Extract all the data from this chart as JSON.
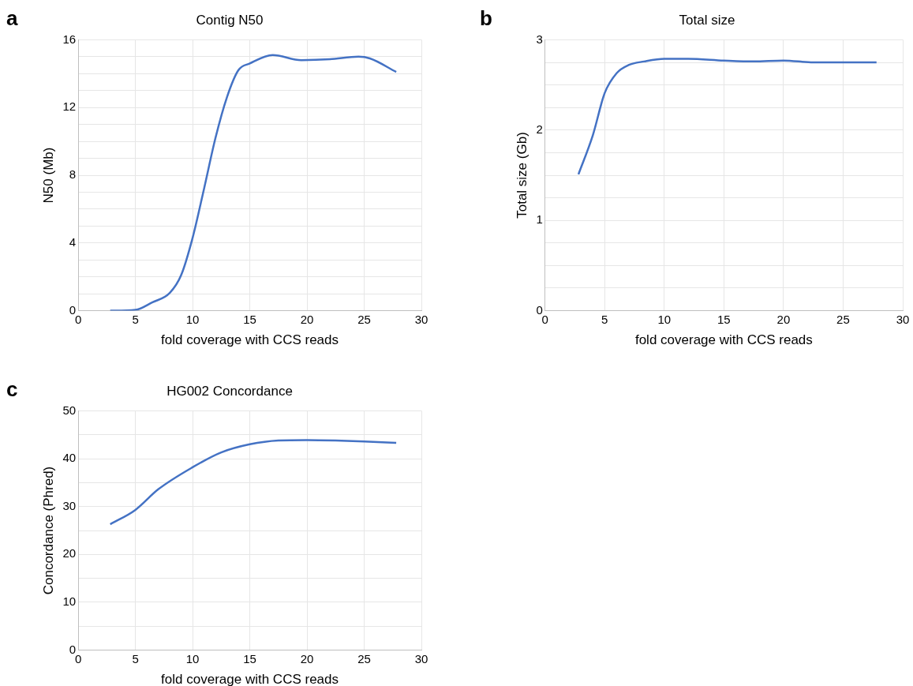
{
  "chart_data": [
    {
      "type": "line",
      "title": "Contig N50",
      "xlabel": "fold coverage with CCS reads",
      "ylabel": "N50 (Mb)",
      "annotations": [
        "a"
      ],
      "grid": true,
      "color": "#4472c4",
      "x": [
        2.8,
        5,
        6.5,
        8,
        9,
        10,
        11,
        12,
        13,
        14,
        15,
        17,
        19.5,
        22,
        24.5,
        25.5,
        27.8
      ],
      "values": [
        0,
        0.05,
        0.5,
        1.05,
        2.1,
        4.3,
        7.2,
        10.2,
        12.6,
        14.2,
        14.6,
        15.1,
        14.8,
        14.85,
        15,
        14.9,
        14.1
      ],
      "xlim": [
        0,
        30
      ],
      "xticks": [
        0,
        5,
        10,
        15,
        20,
        25,
        30
      ],
      "ylim": [
        0,
        16
      ],
      "yticks": [
        0,
        {
          "value": 1,
          "label": null
        },
        {
          "value": 2,
          "label": null
        },
        {
          "value": 3,
          "label": null
        },
        4,
        {
          "value": 5,
          "label": null
        },
        {
          "value": 6,
          "label": null
        },
        {
          "value": 7,
          "label": null
        },
        8,
        {
          "value": 9,
          "label": null
        },
        {
          "value": 10,
          "label": null
        },
        {
          "value": 11,
          "label": null
        },
        12,
        {
          "value": 13,
          "label": null
        },
        {
          "value": 14,
          "label": null
        },
        {
          "value": 15,
          "label": null
        },
        16
      ]
    },
    {
      "type": "line",
      "title": "Total size",
      "xlabel": "fold coverage with CCS reads",
      "ylabel": "Total size (Gb)",
      "annotations": [
        "b"
      ],
      "grid": true,
      "color": "#4472c4",
      "x": [
        2.8,
        4,
        5,
        6,
        7,
        8.3,
        10,
        12,
        15,
        17.5,
        20,
        22.5,
        25,
        27.8
      ],
      "values": [
        1.51,
        1.94,
        2.41,
        2.63,
        2.72,
        2.76,
        2.79,
        2.79,
        2.77,
        2.76,
        2.77,
        2.75,
        2.75,
        2.75
      ],
      "xlim": [
        0,
        30
      ],
      "xticks": [
        0,
        5,
        10,
        15,
        20,
        25,
        30
      ],
      "ylim": [
        0,
        3
      ],
      "yticks": [
        0,
        {
          "value": 0.25,
          "label": null
        },
        {
          "value": 0.5,
          "label": null
        },
        {
          "value": 0.75,
          "label": null
        },
        1,
        {
          "value": 1.25,
          "label": null
        },
        {
          "value": 1.5,
          "label": null
        },
        {
          "value": 1.75,
          "label": null
        },
        2,
        {
          "value": 2.25,
          "label": null
        },
        {
          "value": 2.5,
          "label": null
        },
        {
          "value": 2.75,
          "label": null
        },
        3
      ]
    },
    {
      "type": "line",
      "title": "HG002 Concordance",
      "xlabel": "fold coverage with CCS reads",
      "ylabel": "Concordance (Phred)",
      "annotations": [
        "c"
      ],
      "grid": true,
      "color": "#4472c4",
      "x": [
        2.8,
        5,
        7,
        10,
        12.5,
        15,
        17.5,
        20,
        22.5,
        25,
        27.8
      ],
      "values": [
        26.3,
        29.3,
        33.6,
        38.2,
        41.3,
        43,
        43.8,
        43.9,
        43.8,
        43.6,
        43.3
      ],
      "xlim": [
        0,
        30
      ],
      "xticks": [
        0,
        5,
        10,
        15,
        20,
        25,
        30
      ],
      "ylim": [
        0,
        50
      ],
      "yticks": [
        0,
        {
          "value": 5,
          "label": null
        },
        10,
        {
          "value": 15,
          "label": null
        },
        20,
        {
          "value": 25,
          "label": null
        },
        30,
        {
          "value": 35,
          "label": null
        },
        40,
        {
          "value": 45,
          "label": null
        },
        50
      ]
    }
  ]
}
